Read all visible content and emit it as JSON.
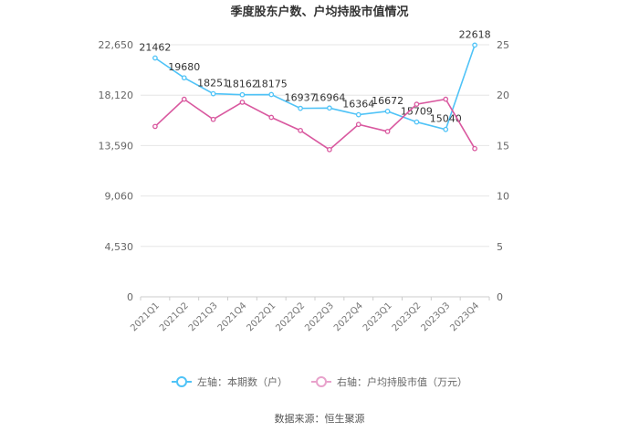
{
  "chart_data": {
    "type": "line",
    "title": "季度股东户数、户均持股市值情况",
    "categories": [
      "2021Q1",
      "2021Q2",
      "2021Q3",
      "2021Q4",
      "2022Q1",
      "2022Q2",
      "2022Q3",
      "2022Q4",
      "2023Q1",
      "2023Q2",
      "2023Q3",
      "2023Q4"
    ],
    "y_left": {
      "ticks": [
        "0",
        "4,530",
        "9,060",
        "13,590",
        "18,120",
        "22,650"
      ],
      "range": [
        0,
        22650
      ]
    },
    "y_right": {
      "ticks": [
        "0",
        "5",
        "10",
        "15",
        "20",
        "25"
      ],
      "range": [
        0,
        25
      ]
    },
    "grid": true,
    "series": [
      {
        "name": "左轴：本期数（户）",
        "axis": "left",
        "color": "#4fc3f7",
        "values": [
          21462,
          19680,
          18251,
          18162,
          18175,
          16937,
          16964,
          16364,
          16672,
          15709,
          15040,
          22618
        ],
        "labels": [
          "21462",
          "19680",
          "18251",
          "18162",
          "18175",
          "16937",
          "16964",
          "16364",
          "16672",
          "15709",
          "15040",
          "22618"
        ]
      },
      {
        "name": "右轴：户均持股市值（万元）",
        "axis": "right",
        "color": "#d9589f",
        "values": [
          16.9,
          19.6,
          17.6,
          19.3,
          17.8,
          16.5,
          14.6,
          17.1,
          16.4,
          19.1,
          19.6,
          14.7
        ]
      }
    ]
  },
  "source_text": "数据来源：恒生聚源"
}
